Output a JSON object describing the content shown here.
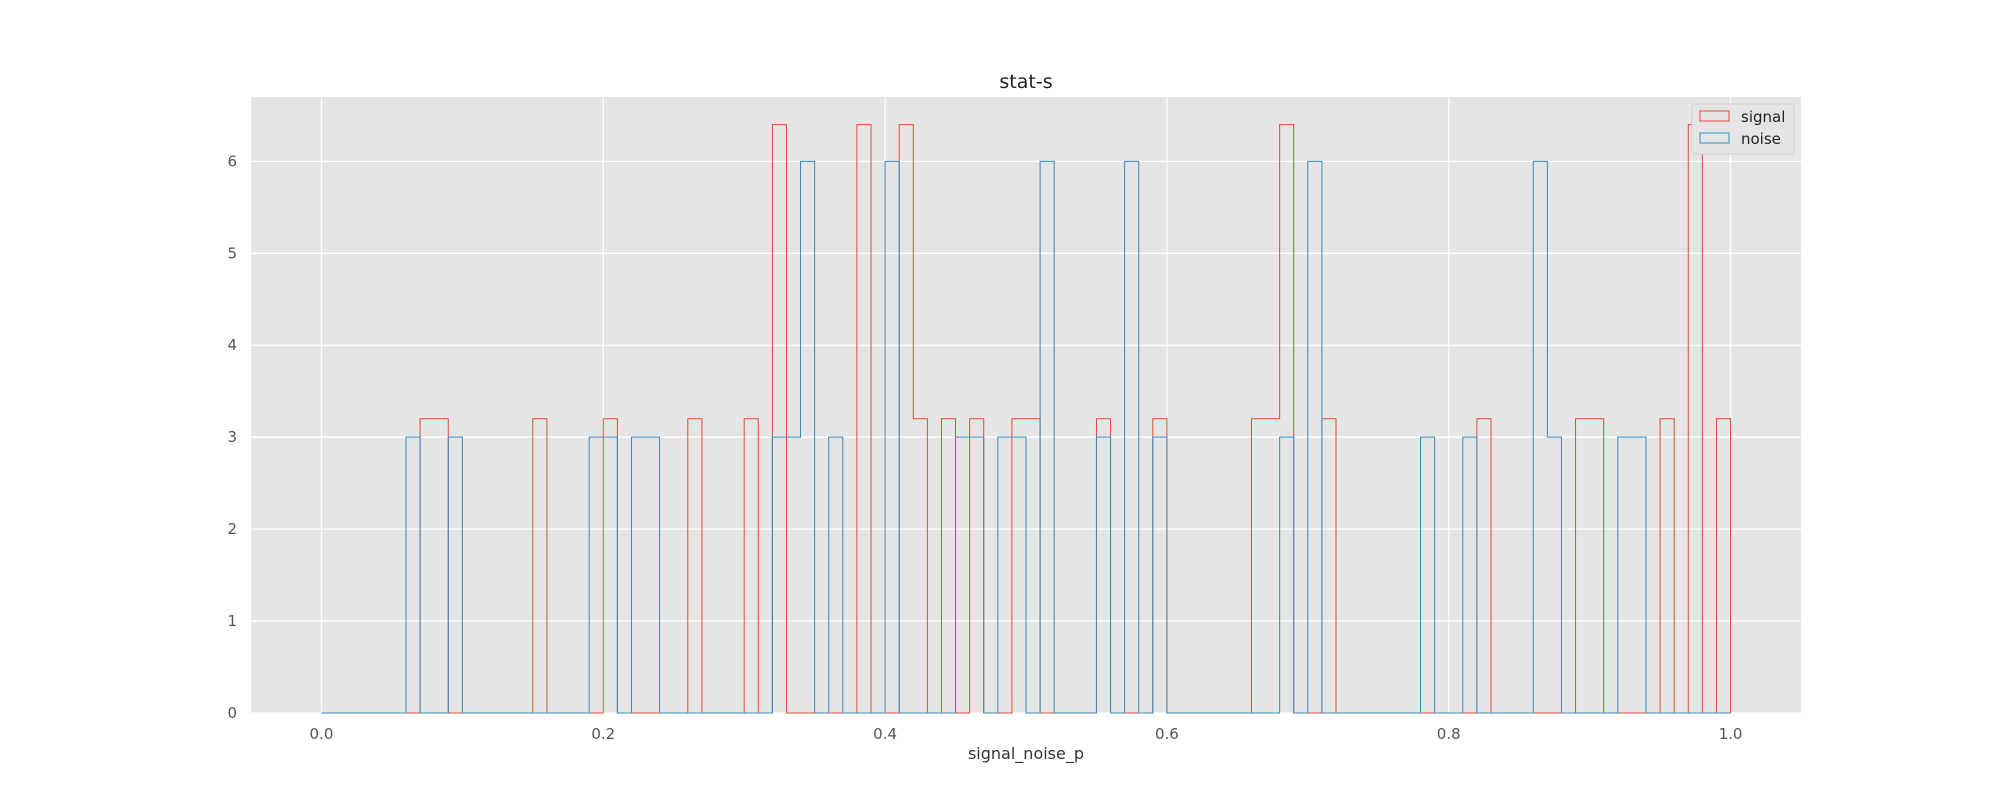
{
  "chart_data": {
    "type": "histogram",
    "title": "stat-s",
    "xlabel": "signal_noise_p",
    "ylabel": "",
    "xlim": [
      -0.05,
      1.05
    ],
    "ylim": [
      0,
      6.7
    ],
    "grid": true,
    "legend": "top-right",
    "x_ticks": [
      0.0,
      0.2,
      0.4,
      0.6,
      0.8,
      1.0
    ],
    "x_tick_labels": [
      "0.0",
      "0.2",
      "0.4",
      "0.6",
      "0.8",
      "1.0"
    ],
    "y_ticks": [
      0,
      1,
      2,
      3,
      4,
      5,
      6
    ],
    "y_tick_labels": [
      "0",
      "1",
      "2",
      "3",
      "4",
      "5",
      "6"
    ],
    "bin_edges": [
      0.0,
      0.01,
      0.02,
      0.03,
      0.04,
      0.05,
      0.06,
      0.07,
      0.08,
      0.09,
      0.1,
      0.11,
      0.12,
      0.13,
      0.14,
      0.15,
      0.16,
      0.17,
      0.18,
      0.19,
      0.2,
      0.21,
      0.22,
      0.23,
      0.24,
      0.25,
      0.26,
      0.27,
      0.28,
      0.29,
      0.3,
      0.31,
      0.32,
      0.33,
      0.34,
      0.35,
      0.36,
      0.37,
      0.38,
      0.39,
      0.4,
      0.41,
      0.42,
      0.43,
      0.44,
      0.45,
      0.46,
      0.47,
      0.48,
      0.49,
      0.5,
      0.51,
      0.52,
      0.53,
      0.54,
      0.55,
      0.56,
      0.57,
      0.58,
      0.59,
      0.6,
      0.61,
      0.62,
      0.63,
      0.64,
      0.65,
      0.66,
      0.67,
      0.68,
      0.69,
      0.7,
      0.71,
      0.72,
      0.73,
      0.74,
      0.75,
      0.76,
      0.77,
      0.78,
      0.79,
      0.8,
      0.81,
      0.82,
      0.83,
      0.84,
      0.85,
      0.86,
      0.87,
      0.88,
      0.89,
      0.9,
      0.91,
      0.92,
      0.93,
      0.94,
      0.95,
      0.96,
      0.97,
      0.98,
      0.99,
      1.0
    ],
    "series": [
      {
        "name": "signal",
        "color": "#E24A33",
        "bin_start": 0.0,
        "bin_width": 0.01,
        "values": [
          0,
          0,
          0,
          0,
          0,
          0,
          0,
          3.2,
          3.2,
          0,
          0,
          0,
          0,
          0,
          0,
          3.2,
          0,
          0,
          0,
          0,
          3.2,
          0,
          0,
          0,
          0,
          0,
          3.2,
          0,
          0,
          0,
          3.2,
          0,
          6.4,
          0,
          0,
          0,
          0,
          0,
          6.4,
          0,
          0,
          6.4,
          3.2,
          0,
          3.2,
          0,
          3.2,
          0,
          0,
          3.2,
          3.2,
          0,
          0,
          0,
          0,
          3.2,
          0,
          0,
          0,
          3.2,
          0,
          0,
          0,
          0,
          0,
          0,
          3.2,
          3.2,
          6.4,
          0,
          0,
          3.2,
          0,
          0,
          0,
          0,
          0,
          0,
          0,
          0,
          0,
          0,
          3.2,
          0,
          0,
          0,
          0,
          0,
          0,
          3.2,
          3.2,
          0,
          0,
          0,
          0,
          3.2,
          0,
          6.4,
          0,
          3.2
        ]
      },
      {
        "name": "noise",
        "color": "#348ABD",
        "bin_start": 0.0,
        "bin_width": 0.01,
        "values": [
          0,
          0,
          0,
          0,
          0,
          0,
          3,
          0,
          0,
          3,
          0,
          0,
          0,
          0,
          0,
          0,
          0,
          0,
          0,
          3,
          3,
          0,
          3,
          3,
          0,
          0,
          0,
          0,
          0,
          0,
          0,
          0,
          3,
          3,
          6,
          0,
          3,
          0,
          0,
          0,
          6,
          0,
          0,
          0,
          0,
          3,
          3,
          0,
          3,
          3,
          0,
          6,
          0,
          0,
          0,
          3,
          0,
          6,
          0,
          3,
          0,
          0,
          0,
          0,
          0,
          0,
          0,
          0,
          3,
          0,
          6,
          0,
          0,
          0,
          0,
          0,
          0,
          0,
          3,
          0,
          0,
          3,
          0,
          0,
          0,
          0,
          6,
          3,
          0,
          0,
          0,
          0,
          3,
          3,
          0,
          0,
          0,
          0,
          0,
          0
        ]
      }
    ]
  }
}
